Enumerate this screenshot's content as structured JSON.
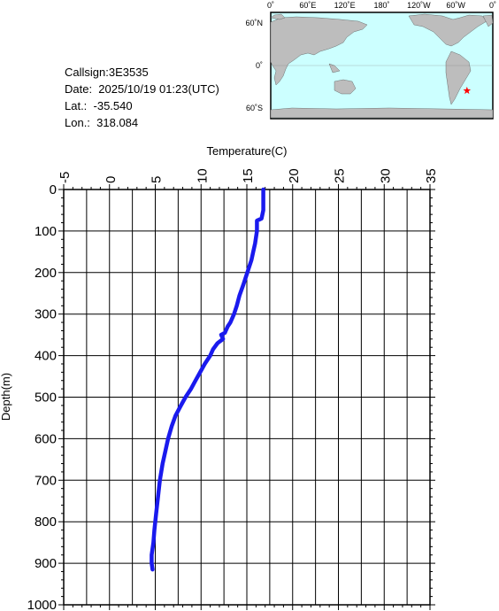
{
  "info": {
    "callsign": "Callsign:3E3535",
    "date": "Date:  2025/10/19 01:23(UTC)",
    "lat": "Lat.:  -35.540",
    "lon": "Lon.:  318.084"
  },
  "map": {
    "lon_labels": [
      "0˚",
      "60˚E",
      "120˚E",
      "180˚",
      "120˚W",
      "60˚W",
      "0˚"
    ],
    "lat_labels": [
      "60˚N",
      "0˚",
      "60˚S"
    ],
    "ocean_color": "#ccffff",
    "land_color": "#bdbdbd",
    "marker_color": "#ff0000",
    "marker_lat": -35.54,
    "marker_lon": 318.084
  },
  "chart_data": {
    "type": "line",
    "xlabel": "Temperature(C)",
    "ylabel": "Depth(m)",
    "xlim": [
      -5,
      35
    ],
    "ylim": [
      1000,
      0
    ],
    "xticks": [
      "-5",
      "0",
      "5",
      "10",
      "15",
      "20",
      "25",
      "30",
      "35"
    ],
    "yticks": [
      "0",
      "100",
      "200",
      "300",
      "400",
      "500",
      "600",
      "700",
      "800",
      "900",
      "1000"
    ],
    "grid": true,
    "line_color": "#1a1aee",
    "series": [
      {
        "x": [
          16.8,
          16.8,
          16.8,
          16.7,
          16.6,
          16.1,
          16.1,
          15.9,
          15.7,
          15.5,
          15.2,
          14.9,
          14.6,
          14.2,
          13.9,
          13.6,
          13.2,
          12.9,
          12.7,
          12.6,
          12.2,
          12.4,
          11.8,
          11.3,
          11.0,
          10.4,
          9.9,
          9.4,
          8.9,
          8.3,
          7.8,
          7.2,
          6.8,
          6.4,
          6.1,
          5.8,
          5.5,
          5.3,
          5.1,
          4.9,
          4.8,
          4.6,
          4.6,
          4.7
        ],
        "y": [
          0,
          25,
          50,
          60,
          70,
          75,
          100,
          130,
          150,
          170,
          190,
          210,
          230,
          255,
          280,
          300,
          320,
          330,
          340,
          345,
          350,
          360,
          370,
          385,
          400,
          420,
          440,
          460,
          480,
          500,
          520,
          545,
          570,
          600,
          630,
          660,
          700,
          740,
          780,
          820,
          850,
          880,
          900,
          915
        ]
      }
    ]
  }
}
